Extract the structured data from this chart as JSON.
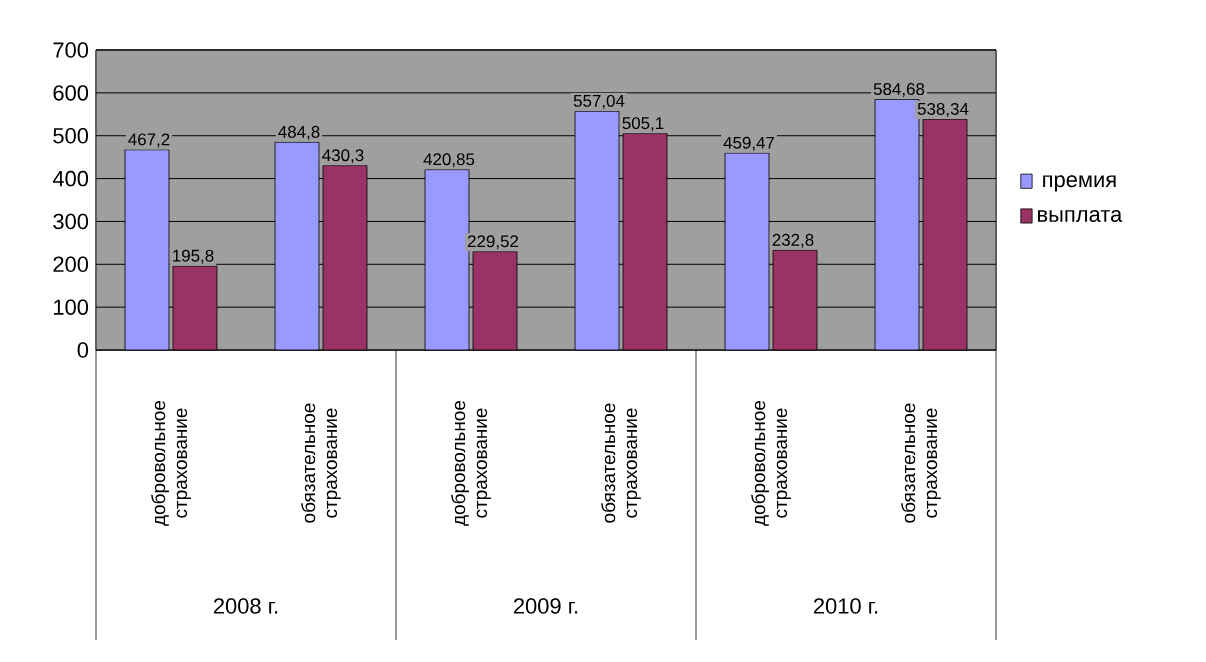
{
  "chart_data": {
    "type": "bar",
    "categories": [
      "добровольное страхование",
      "обязательное страхование",
      "добровольное страхование",
      "обязательное страхование",
      "добровольное страхование",
      "обязательное страхование"
    ],
    "series": [
      {
        "name": "премия",
        "color": "#9999ff",
        "values": [
          467.2,
          484.8,
          420.85,
          557.04,
          459.47,
          584.68
        ],
        "value_labels": [
          "467,2",
          "484,8",
          "420,85",
          "557,04",
          "459,47",
          "584,68"
        ]
      },
      {
        "name": "выплата",
        "color": "#993366",
        "values": [
          195.8,
          430.3,
          229.52,
          505.1,
          232.8,
          538.34
        ],
        "value_labels": [
          "195,8",
          "430,3",
          "229,52",
          "505,1",
          "232,8",
          "538,34"
        ]
      }
    ],
    "annotations": [
      "2008 г.",
      "2009 г.",
      "2010 г."
    ],
    "ylim": [
      0,
      700
    ],
    "yticks": [
      0,
      100,
      200,
      300,
      400,
      500,
      600,
      700
    ],
    "grid": "y",
    "legend": "right"
  }
}
